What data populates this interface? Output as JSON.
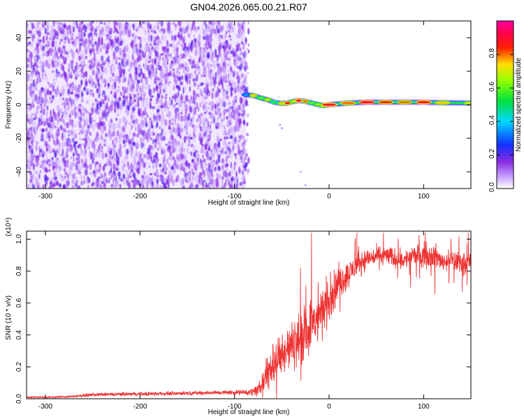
{
  "chart_data": [
    {
      "type": "heatmap",
      "title": "GN04.2026.065.00.21.R07",
      "xlabel": "Height of straight line (km)",
      "ylabel": "Frequency (Hz)",
      "xlim": [
        -320,
        150
      ],
      "ylim": [
        -50,
        50
      ],
      "xticks": [
        -300,
        -200,
        -100,
        0,
        100
      ],
      "yticks": [
        -40,
        -20,
        0,
        20,
        40
      ],
      "noise_region": {
        "x_from": -320,
        "x_to": -88,
        "dominant_level": 0.12
      },
      "signal_band": {
        "x": [
          -88,
          -80,
          -72,
          -65,
          -58,
          -50,
          -44,
          -38,
          -32,
          -25,
          -18,
          -12,
          -6,
          0,
          20,
          40,
          60,
          80,
          100,
          120,
          150
        ],
        "center_hz": [
          6,
          5.5,
          4,
          3,
          1.5,
          0.8,
          1,
          2,
          2.5,
          2,
          1,
          0.2,
          -0.5,
          0,
          1,
          1.5,
          1.5,
          1.5,
          1.5,
          1.2,
          1
        ],
        "peak_amplitude": [
          0.35,
          0.75,
          0.6,
          0.7,
          0.55,
          0.75,
          0.85,
          0.7,
          0.9,
          0.8,
          0.6,
          0.65,
          0.7,
          0.9,
          0.8,
          0.95,
          0.85,
          0.8,
          0.9,
          0.75,
          0.7
        ]
      },
      "colorbar": {
        "label": "Normalized spectral amplitude",
        "range": [
          0,
          1
        ],
        "ticks": [
          0.0,
          0.2,
          0.4,
          0.6,
          0.8
        ],
        "tick_labels": [
          "0.0",
          "0.2",
          "0.4",
          "0.6",
          "0.8"
        ],
        "colormap": "white-purple-blue-cyan-green-yellow-red-magenta"
      },
      "grid": false
    },
    {
      "type": "line",
      "title": "",
      "xlabel": "Height of straight line (km)",
      "ylabel": "SNR (10 * v/v)",
      "y_multiplier": "(x10⁴)",
      "xlim": [
        -320,
        150
      ],
      "ylim": [
        0,
        1.05
      ],
      "xticks": [
        -300,
        -200,
        -100,
        0,
        100
      ],
      "yticks": [
        0.0,
        0.2,
        0.4,
        0.6,
        0.8,
        1.0
      ],
      "series_color": "#ee3333",
      "series": [
        {
          "x": [
            -320,
            -290,
            -270,
            -250,
            -200,
            -150,
            -100,
            -85,
            -75,
            -70,
            -65,
            -60,
            -50,
            -40,
            -30,
            -20,
            -10,
            0,
            10,
            20,
            30,
            40,
            50,
            60,
            70,
            80,
            90,
            100,
            110,
            120,
            130,
            140,
            150
          ],
          "values": [
            0.01,
            0.01,
            0.015,
            0.025,
            0.03,
            0.035,
            0.04,
            0.04,
            0.05,
            0.1,
            0.16,
            0.22,
            0.28,
            0.33,
            0.38,
            0.45,
            0.52,
            0.62,
            0.72,
            0.78,
            0.84,
            0.88,
            0.89,
            0.9,
            0.88,
            0.87,
            0.9,
            0.9,
            0.9,
            0.86,
            0.87,
            0.85,
            0.86
          ],
          "noise": [
            0.004,
            0.004,
            0.006,
            0.008,
            0.01,
            0.01,
            0.012,
            0.015,
            0.03,
            0.06,
            0.1,
            0.12,
            0.12,
            0.12,
            0.13,
            0.14,
            0.14,
            0.12,
            0.08,
            0.07,
            0.06,
            0.05,
            0.05,
            0.05,
            0.05,
            0.05,
            0.05,
            0.06,
            0.06,
            0.05,
            0.05,
            0.05,
            0.05
          ]
        }
      ],
      "grid": false
    }
  ]
}
